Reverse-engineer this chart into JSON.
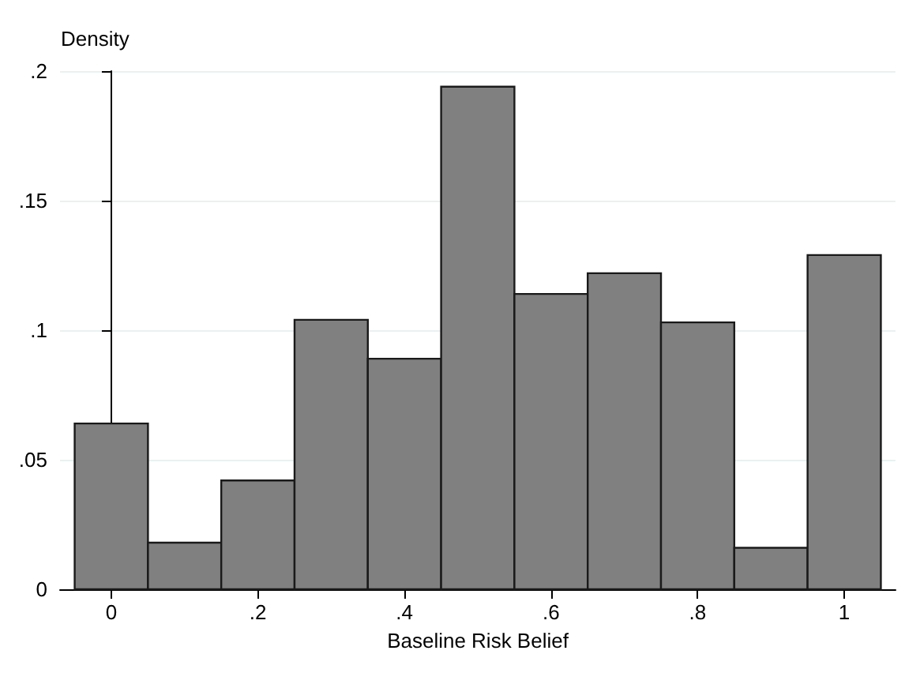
{
  "chart_data": {
    "type": "histogram",
    "xlabel": "Baseline Risk Belief",
    "ylabel": "Density",
    "bins": [
      -0.05,
      0.05,
      0.15,
      0.25,
      0.35,
      0.45,
      0.55,
      0.65,
      0.75,
      0.85,
      0.95,
      1.05
    ],
    "values": [
      0.064,
      0.018,
      0.042,
      0.104,
      0.089,
      0.194,
      0.114,
      0.122,
      0.103,
      0.016,
      0.129
    ],
    "color": "#808080",
    "xlim": [
      -0.07,
      1.07
    ],
    "xticks": [
      {
        "value": 0,
        "label": "0"
      },
      {
        "value": 0.2,
        "label": ".2"
      },
      {
        "value": 0.4,
        "label": ".4"
      },
      {
        "value": 0.6,
        "label": ".6"
      },
      {
        "value": 0.8,
        "label": ".8"
      },
      {
        "value": 1,
        "label": "1"
      }
    ],
    "ylim": [
      0,
      0.2
    ],
    "yticks": [
      {
        "value": 0,
        "label": "0"
      },
      {
        "value": 0.05,
        "label": ".05"
      },
      {
        "value": 0.1,
        "label": ".1"
      },
      {
        "value": 0.15,
        "label": ".15"
      },
      {
        "value": 0.2,
        "label": ".2"
      }
    ],
    "grid": "y"
  }
}
